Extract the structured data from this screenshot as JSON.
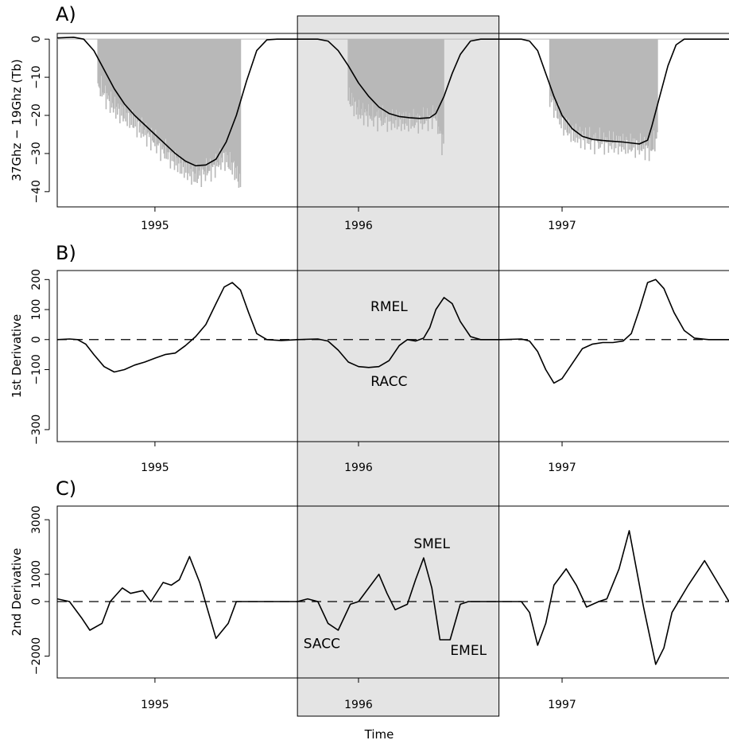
{
  "figure": {
    "xlabel": "Time",
    "highlight_band": {
      "from": 1995.7,
      "to": 1996.69,
      "color": "#e4e4e4"
    },
    "colors": {
      "line": "#000000",
      "bars": "#b8b8b8",
      "band": "#e4e4e4",
      "dash": "#000000"
    }
  },
  "chart_data": [
    {
      "panel": "A)",
      "type": "line",
      "ylabel": "37Ghz − 19Ghz (Tb)",
      "yticks": [
        0,
        -10,
        -20,
        -30,
        -40
      ],
      "ylim": [
        -44,
        1.5
      ],
      "xlim": [
        1994.52,
        1997.82
      ],
      "xticks": [
        1995.0,
        1996.0,
        1997.0
      ],
      "xtick_labels": [
        "1995",
        "1996",
        "1997"
      ],
      "bars": {
        "type": "bar",
        "name": "observations",
        "segments": [
          {
            "from": 1994.72,
            "to": 1995.42,
            "points": [
              [
                1994.72,
                -12
              ],
              [
                1994.8,
                -18
              ],
              [
                1994.88,
                -21
              ],
              [
                1994.96,
                -25
              ],
              [
                1995.04,
                -29
              ],
              [
                1995.12,
                -33
              ],
              [
                1995.2,
                -36
              ],
              [
                1995.28,
                -34
              ],
              [
                1995.34,
                -31
              ],
              [
                1995.39,
                -34
              ],
              [
                1995.42,
                -38
              ]
            ]
          },
          {
            "from": 1995.95,
            "to": 1996.42,
            "points": [
              [
                1995.95,
                -15
              ],
              [
                1996.0,
                -19
              ],
              [
                1996.08,
                -20.5
              ],
              [
                1996.16,
                -21.2
              ],
              [
                1996.24,
                -21.5
              ],
              [
                1996.32,
                -21.3
              ],
              [
                1996.38,
                -20
              ],
              [
                1996.41,
                -27
              ]
            ]
          },
          {
            "from": 1996.94,
            "to": 1997.47,
            "points": [
              [
                1996.94,
                -15
              ],
              [
                1997.0,
                -22
              ],
              [
                1997.06,
                -25
              ],
              [
                1997.14,
                -26.5
              ],
              [
                1997.22,
                -27
              ],
              [
                1997.3,
                -27.5
              ],
              [
                1997.38,
                -28
              ],
              [
                1997.44,
                -29
              ],
              [
                1997.47,
                -25
              ]
            ]
          }
        ]
      },
      "series": [
        {
          "points": [
            [
              1994.52,
              0.3
            ],
            [
              1994.6,
              0.5
            ],
            [
              1994.65,
              0
            ],
            [
              1994.7,
              -3
            ],
            [
              1994.75,
              -8
            ],
            [
              1994.8,
              -13
            ],
            [
              1994.85,
              -17
            ],
            [
              1994.9,
              -20
            ],
            [
              1994.95,
              -22.5
            ],
            [
              1995.0,
              -25
            ],
            [
              1995.05,
              -27.5
            ],
            [
              1995.1,
              -30
            ],
            [
              1995.15,
              -32
            ],
            [
              1995.2,
              -33.2
            ],
            [
              1995.25,
              -33
            ],
            [
              1995.3,
              -31.5
            ],
            [
              1995.35,
              -27
            ],
            [
              1995.4,
              -20
            ],
            [
              1995.45,
              -11
            ],
            [
              1995.5,
              -3
            ],
            [
              1995.55,
              -0.2
            ],
            [
              1995.6,
              0
            ],
            [
              1995.7,
              0
            ],
            [
              1995.8,
              0
            ],
            [
              1995.85,
              -0.5
            ],
            [
              1995.9,
              -3
            ],
            [
              1995.95,
              -7
            ],
            [
              1996.0,
              -11.5
            ],
            [
              1996.05,
              -15
            ],
            [
              1996.1,
              -17.8
            ],
            [
              1996.15,
              -19.5
            ],
            [
              1996.2,
              -20.3
            ],
            [
              1996.25,
              -20.6
            ],
            [
              1996.3,
              -20.8
            ],
            [
              1996.35,
              -20.6
            ],
            [
              1996.38,
              -19.5
            ],
            [
              1996.42,
              -15
            ],
            [
              1996.46,
              -9
            ],
            [
              1996.5,
              -4
            ],
            [
              1996.55,
              -0.5
            ],
            [
              1996.6,
              0
            ],
            [
              1996.7,
              0
            ],
            [
              1996.8,
              0
            ],
            [
              1996.84,
              -0.5
            ],
            [
              1996.88,
              -3
            ],
            [
              1996.92,
              -9
            ],
            [
              1996.96,
              -15
            ],
            [
              1997.0,
              -20
            ],
            [
              1997.05,
              -23.5
            ],
            [
              1997.1,
              -25.5
            ],
            [
              1997.15,
              -26.3
            ],
            [
              1997.2,
              -26.6
            ],
            [
              1997.25,
              -26.8
            ],
            [
              1997.3,
              -27
            ],
            [
              1997.35,
              -27.3
            ],
            [
              1997.38,
              -27.5
            ],
            [
              1997.42,
              -26.5
            ],
            [
              1997.44,
              -23
            ],
            [
              1997.48,
              -15
            ],
            [
              1997.52,
              -7
            ],
            [
              1997.56,
              -1.5
            ],
            [
              1997.6,
              0
            ],
            [
              1997.82,
              0
            ]
          ]
        }
      ]
    },
    {
      "panel": "B)",
      "type": "line",
      "ylabel": "1st Derivative",
      "yticks": [
        200,
        100,
        0,
        -100,
        -300
      ],
      "ylim": [
        -340,
        230
      ],
      "xlim": [
        1994.52,
        1997.82
      ],
      "xticks": [
        1995.0,
        1996.0,
        1997.0
      ],
      "xtick_labels": [
        "1995",
        "1996",
        "1997"
      ],
      "reference_line": 0,
      "annotations": [
        {
          "text": "RMEL",
          "x": 1996.15,
          "y": 95
        },
        {
          "text": "RACC",
          "x": 1996.15,
          "y": -155
        }
      ],
      "series": [
        {
          "points": [
            [
              1994.52,
              0
            ],
            [
              1994.58,
              2
            ],
            [
              1994.62,
              0
            ],
            [
              1994.66,
              -15
            ],
            [
              1994.7,
              -50
            ],
            [
              1994.75,
              -90
            ],
            [
              1994.8,
              -108
            ],
            [
              1994.85,
              -100
            ],
            [
              1994.9,
              -85
            ],
            [
              1994.95,
              -75
            ],
            [
              1995.0,
              -62
            ],
            [
              1995.05,
              -50
            ],
            [
              1995.1,
              -45
            ],
            [
              1995.15,
              -20
            ],
            [
              1995.2,
              10
            ],
            [
              1995.25,
              50
            ],
            [
              1995.3,
              120
            ],
            [
              1995.34,
              175
            ],
            [
              1995.38,
              190
            ],
            [
              1995.42,
              165
            ],
            [
              1995.46,
              90
            ],
            [
              1995.5,
              20
            ],
            [
              1995.55,
              0
            ],
            [
              1995.62,
              -3
            ],
            [
              1995.7,
              0
            ],
            [
              1995.8,
              2
            ],
            [
              1995.85,
              -5
            ],
            [
              1995.9,
              -35
            ],
            [
              1995.95,
              -75
            ],
            [
              1996.0,
              -90
            ],
            [
              1996.05,
              -93
            ],
            [
              1996.1,
              -90
            ],
            [
              1996.15,
              -70
            ],
            [
              1996.2,
              -20
            ],
            [
              1996.24,
              0
            ],
            [
              1996.28,
              -5
            ],
            [
              1996.32,
              5
            ],
            [
              1996.35,
              40
            ],
            [
              1996.38,
              100
            ],
            [
              1996.42,
              140
            ],
            [
              1996.46,
              120
            ],
            [
              1996.5,
              60
            ],
            [
              1996.55,
              10
            ],
            [
              1996.6,
              0
            ],
            [
              1996.7,
              0
            ],
            [
              1996.8,
              2
            ],
            [
              1996.84,
              -5
            ],
            [
              1996.88,
              -40
            ],
            [
              1996.92,
              -100
            ],
            [
              1996.96,
              -145
            ],
            [
              1997.0,
              -130
            ],
            [
              1997.05,
              -80
            ],
            [
              1997.1,
              -30
            ],
            [
              1997.15,
              -15
            ],
            [
              1997.2,
              -10
            ],
            [
              1997.25,
              -10
            ],
            [
              1997.3,
              -5
            ],
            [
              1997.34,
              20
            ],
            [
              1997.38,
              100
            ],
            [
              1997.42,
              190
            ],
            [
              1997.46,
              200
            ],
            [
              1997.5,
              170
            ],
            [
              1997.55,
              90
            ],
            [
              1997.6,
              30
            ],
            [
              1997.65,
              5
            ],
            [
              1997.72,
              0
            ],
            [
              1997.82,
              0
            ]
          ]
        }
      ]
    },
    {
      "panel": "C)",
      "type": "line",
      "ylabel": "2nd Derivative",
      "yticks": [
        3000,
        1000,
        0,
        -2000
      ],
      "ylim": [
        -2800,
        3500
      ],
      "xlim": [
        1994.52,
        1997.82
      ],
      "xticks": [
        1995.0,
        1996.0,
        1997.0
      ],
      "xtick_labels": [
        "1995",
        "1996",
        "1997"
      ],
      "reference_line": 0,
      "annotations": [
        {
          "text": "SMEL",
          "x": 1996.36,
          "y": 1950
        },
        {
          "text": "SACC",
          "x": 1995.82,
          "y": -1700
        },
        {
          "text": "EMEL",
          "x": 1996.54,
          "y": -1950
        }
      ],
      "series": [
        {
          "points": [
            [
              1994.52,
              100
            ],
            [
              1994.58,
              0
            ],
            [
              1994.64,
              -600
            ],
            [
              1994.68,
              -1050
            ],
            [
              1994.74,
              -800
            ],
            [
              1994.78,
              0
            ],
            [
              1994.84,
              500
            ],
            [
              1994.88,
              300
            ],
            [
              1994.94,
              400
            ],
            [
              1994.98,
              0
            ],
            [
              1995.04,
              700
            ],
            [
              1995.08,
              600
            ],
            [
              1995.12,
              800
            ],
            [
              1995.17,
              1650
            ],
            [
              1995.22,
              700
            ],
            [
              1995.3,
              -1350
            ],
            [
              1995.36,
              -800
            ],
            [
              1995.4,
              0
            ],
            [
              1995.55,
              0
            ],
            [
              1995.7,
              0
            ],
            [
              1995.75,
              100
            ],
            [
              1995.8,
              0
            ],
            [
              1995.85,
              -800
            ],
            [
              1995.9,
              -1050
            ],
            [
              1995.96,
              -100
            ],
            [
              1996.0,
              0
            ],
            [
              1996.05,
              500
            ],
            [
              1996.1,
              1000
            ],
            [
              1996.14,
              300
            ],
            [
              1996.18,
              -300
            ],
            [
              1996.24,
              -100
            ],
            [
              1996.28,
              800
            ],
            [
              1996.32,
              1600
            ],
            [
              1996.36,
              500
            ],
            [
              1996.4,
              -1400
            ],
            [
              1996.45,
              -1400
            ],
            [
              1996.5,
              -100
            ],
            [
              1996.54,
              0
            ],
            [
              1996.6,
              0
            ],
            [
              1996.7,
              0
            ],
            [
              1996.8,
              0
            ],
            [
              1996.84,
              -400
            ],
            [
              1996.88,
              -1600
            ],
            [
              1996.92,
              -800
            ],
            [
              1996.96,
              600
            ],
            [
              1997.02,
              1200
            ],
            [
              1997.07,
              600
            ],
            [
              1997.12,
              -200
            ],
            [
              1997.18,
              0
            ],
            [
              1997.22,
              100
            ],
            [
              1997.28,
              1200
            ],
            [
              1997.33,
              2600
            ],
            [
              1997.4,
              -200
            ],
            [
              1997.46,
              -2300
            ],
            [
              1997.5,
              -1700
            ],
            [
              1997.54,
              -400
            ],
            [
              1997.62,
              600
            ],
            [
              1997.7,
              1500
            ],
            [
              1997.78,
              500
            ],
            [
              1997.82,
              0
            ]
          ]
        }
      ]
    }
  ]
}
